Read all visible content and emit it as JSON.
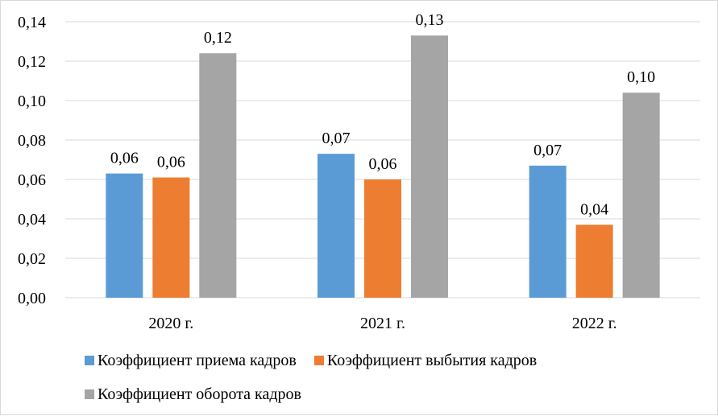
{
  "chart_data": {
    "type": "bar",
    "categories": [
      "2020 г.",
      "2021 г.",
      "2022 г."
    ],
    "series": [
      {
        "name": "Коэффициент приема кадров",
        "values": [
          0.063,
          0.073,
          0.067
        ],
        "labels": [
          "0,06",
          "0,07",
          "0,07"
        ],
        "color": "#5b9bd5"
      },
      {
        "name": "Коэффициент выбытия кадров",
        "values": [
          0.061,
          0.06,
          0.037
        ],
        "labels": [
          "0,06",
          "0,06",
          "0,04"
        ],
        "color": "#ed7d31"
      },
      {
        "name": "Коэффициент оборота кадров",
        "values": [
          0.124,
          0.133,
          0.104
        ],
        "labels": [
          "0,12",
          "0,13",
          "0,10"
        ],
        "color": "#a5a5a5"
      }
    ],
    "ylim": [
      0,
      0.14
    ],
    "yticks": [
      "0,00",
      "0,02",
      "0,04",
      "0,06",
      "0,08",
      "0,10",
      "0,12",
      "0,14"
    ],
    "grid": true,
    "legend_position": "bottom",
    "gridline_color": "#d9d9d9"
  }
}
